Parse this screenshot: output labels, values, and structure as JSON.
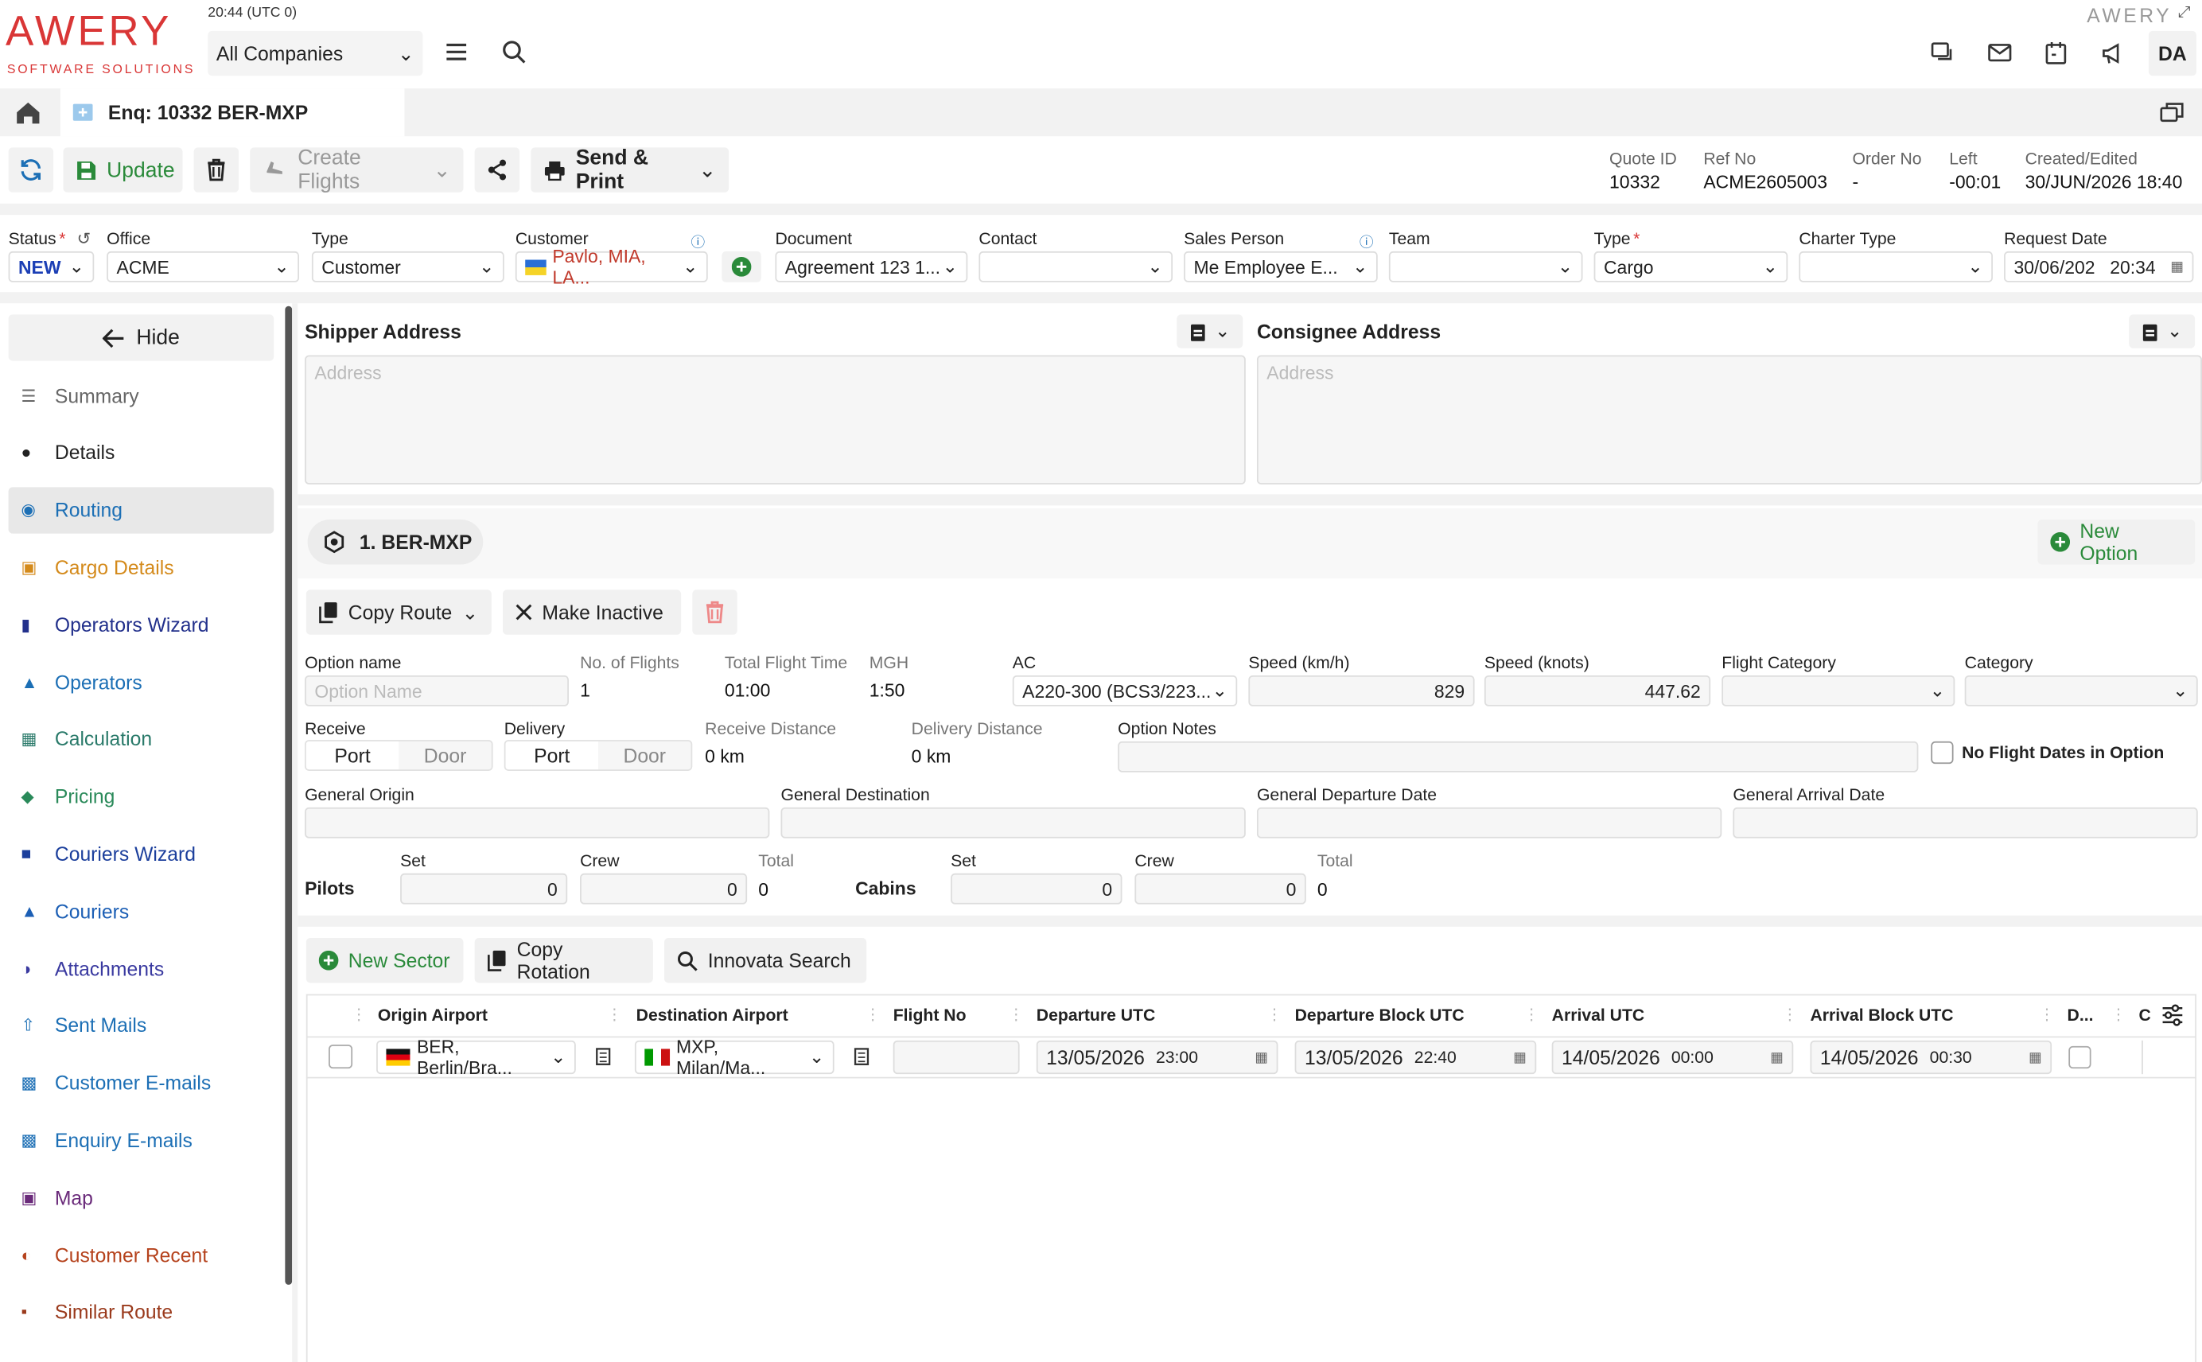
{
  "header": {
    "logo": "AWERY",
    "logo_sub": "SOFTWARE SOLUTIONS",
    "time": "20:44 (UTC 0)",
    "company": "All Companies",
    "brand_right": "AWERY",
    "user": "DA"
  },
  "tab": {
    "title": "Enq: 10332 BER-MXP"
  },
  "toolbar": {
    "update": "Update",
    "create_flights": "Create Flights",
    "send_print": "Send & Print"
  },
  "meta": [
    {
      "label": "Quote ID",
      "value": "10332"
    },
    {
      "label": "Ref No",
      "value": "ACME2605003"
    },
    {
      "label": "Order No",
      "value": "-"
    },
    {
      "label": "Left",
      "value": "-00:01"
    },
    {
      "label": "Created/Edited",
      "value": "30/JUN/2026 18:40"
    }
  ],
  "form": {
    "status_label": "Status",
    "status": "NEW",
    "office_label": "Office",
    "office": "ACME",
    "type_label": "Type",
    "type": "Customer",
    "customer_label": "Customer",
    "customer": "Pavlo, MIA, LA...",
    "document_label": "Document",
    "document": "Agreement 123 1...",
    "contact_label": "Contact",
    "contact": "",
    "sales_label": "Sales Person",
    "sales": "Me Employee E...",
    "team_label": "Team",
    "team": "",
    "type2_label": "Type",
    "type2": "Cargo",
    "charter_label": "Charter Type",
    "charter": "",
    "reqdate_label": "Request Date",
    "reqdate": "30/06/202",
    "reqtime": "20:34"
  },
  "sidebar": {
    "hide": "Hide",
    "items": [
      {
        "label": "Summary",
        "color": "#666"
      },
      {
        "label": "Details",
        "color": "#222"
      },
      {
        "label": "Routing",
        "color": "#1c6fb5"
      },
      {
        "label": "Cargo Details",
        "color": "#d48a1b"
      },
      {
        "label": "Operators Wizard",
        "color": "#23318c"
      },
      {
        "label": "Operators",
        "color": "#1c6fb5"
      },
      {
        "label": "Calculation",
        "color": "#2a7a6a"
      },
      {
        "label": "Pricing",
        "color": "#2a8a5a"
      },
      {
        "label": "Couriers Wizard",
        "color": "#1c3f9c"
      },
      {
        "label": "Couriers",
        "color": "#1c5fb5"
      },
      {
        "label": "Attachments",
        "color": "#3a3aa0"
      },
      {
        "label": "Sent Mails",
        "color": "#1c6fb5"
      },
      {
        "label": "Customer E-mails",
        "color": "#1c6fb5"
      },
      {
        "label": "Enquiry E-mails",
        "color": "#1c6fb5"
      },
      {
        "label": "Map",
        "color": "#6a2a7a"
      },
      {
        "label": "Customer Recent",
        "color": "#b5421c"
      },
      {
        "label": "Similar Route",
        "color": "#9a3a1c"
      }
    ]
  },
  "address": {
    "shipper": "Shipper Address",
    "consignee": "Consignee Address",
    "placeholder": "Address"
  },
  "option": {
    "chip": "1. BER-MXP",
    "new_option": "New Option",
    "copy_route": "Copy Route",
    "make_inactive": "Make Inactive",
    "name_label": "Option name",
    "name_placeholder": "Option Name",
    "flights_label": "No. of Flights",
    "flights": "1",
    "tft_label": "Total Flight Time",
    "tft": "01:00",
    "mgh_label": "MGH",
    "mgh": "1:50",
    "ac_label": "AC",
    "ac": "A220-300 (BCS3/223...",
    "speedkmh_label": "Speed (km/h)",
    "speedkmh": "829",
    "speedkn_label": "Speed (knots)",
    "speedkn": "447.62",
    "flightcat_label": "Flight Category",
    "cat_label": "Category",
    "receive_label": "Receive",
    "delivery_label": "Delivery",
    "port": "Port",
    "door": "Door",
    "rdist_label": "Receive Distance",
    "rdist": "0 km",
    "ddist_label": "Delivery Distance",
    "ddist": "0 km",
    "notes_label": "Option Notes",
    "nodates": "No Flight Dates in Option",
    "gorigin": "General Origin",
    "gdest": "General Destination",
    "gdep": "General Departure Date",
    "garr": "General Arrival Date",
    "pilots": "Pilots",
    "cabins": "Cabins",
    "set": "Set",
    "crew": "Crew",
    "total": "Total",
    "p_set": "0",
    "p_crew": "0",
    "p_total": "0",
    "c_set": "0",
    "c_crew": "0",
    "c_total": "0"
  },
  "sectors": {
    "new_sector": "New Sector",
    "copy_rotation": "Copy Rotation",
    "innovata": "Innovata Search",
    "cols": {
      "origin": "Origin Airport",
      "dest": "Destination Airport",
      "flightno": "Flight No",
      "dep": "Departure UTC",
      "depblock": "Departure Block UTC",
      "arr": "Arrival UTC",
      "arrblock": "Arrival Block UTC",
      "d": "D...",
      "c": "C"
    },
    "row": {
      "origin": "BER, Berlin/Bra...",
      "dest": "MXP, Milan/Ma...",
      "flightno": "",
      "dep_date": "13/05/2026",
      "dep_time": "23:00",
      "depb_date": "13/05/2026",
      "depb_time": "22:40",
      "arr_date": "14/05/2026",
      "arr_time": "00:00",
      "arrb_date": "14/05/2026",
      "arrb_time": "00:30"
    }
  }
}
